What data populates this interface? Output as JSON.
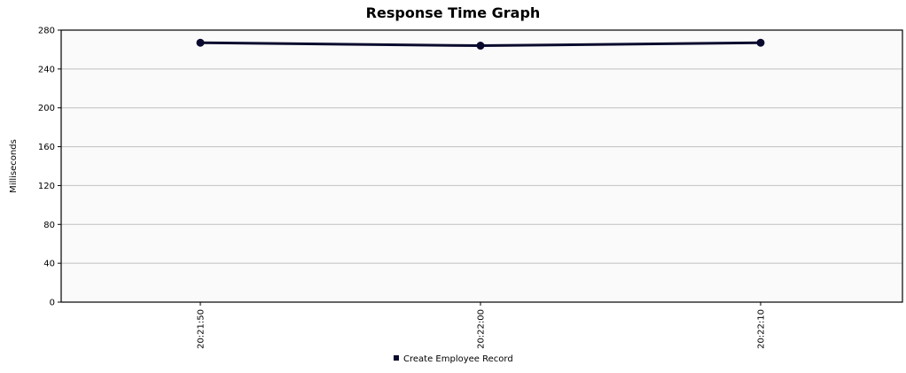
{
  "chart_data": {
    "type": "line",
    "title": "Response Time Graph",
    "ylabel": "Milliseconds",
    "xlabel": "",
    "x": [
      "20:21:50",
      "20:22:00",
      "20:22:10"
    ],
    "y_ticks": [
      0,
      40,
      80,
      120,
      160,
      200,
      240,
      280
    ],
    "ylim": [
      0,
      280
    ],
    "grid": true,
    "legend_position": "bottom",
    "series": [
      {
        "name": "Create Employee Record",
        "values": [
          267,
          264,
          267
        ],
        "color": "#0a0a2e"
      }
    ],
    "plot_background": "#fafafa",
    "grid_color": "#c0c0c0"
  }
}
